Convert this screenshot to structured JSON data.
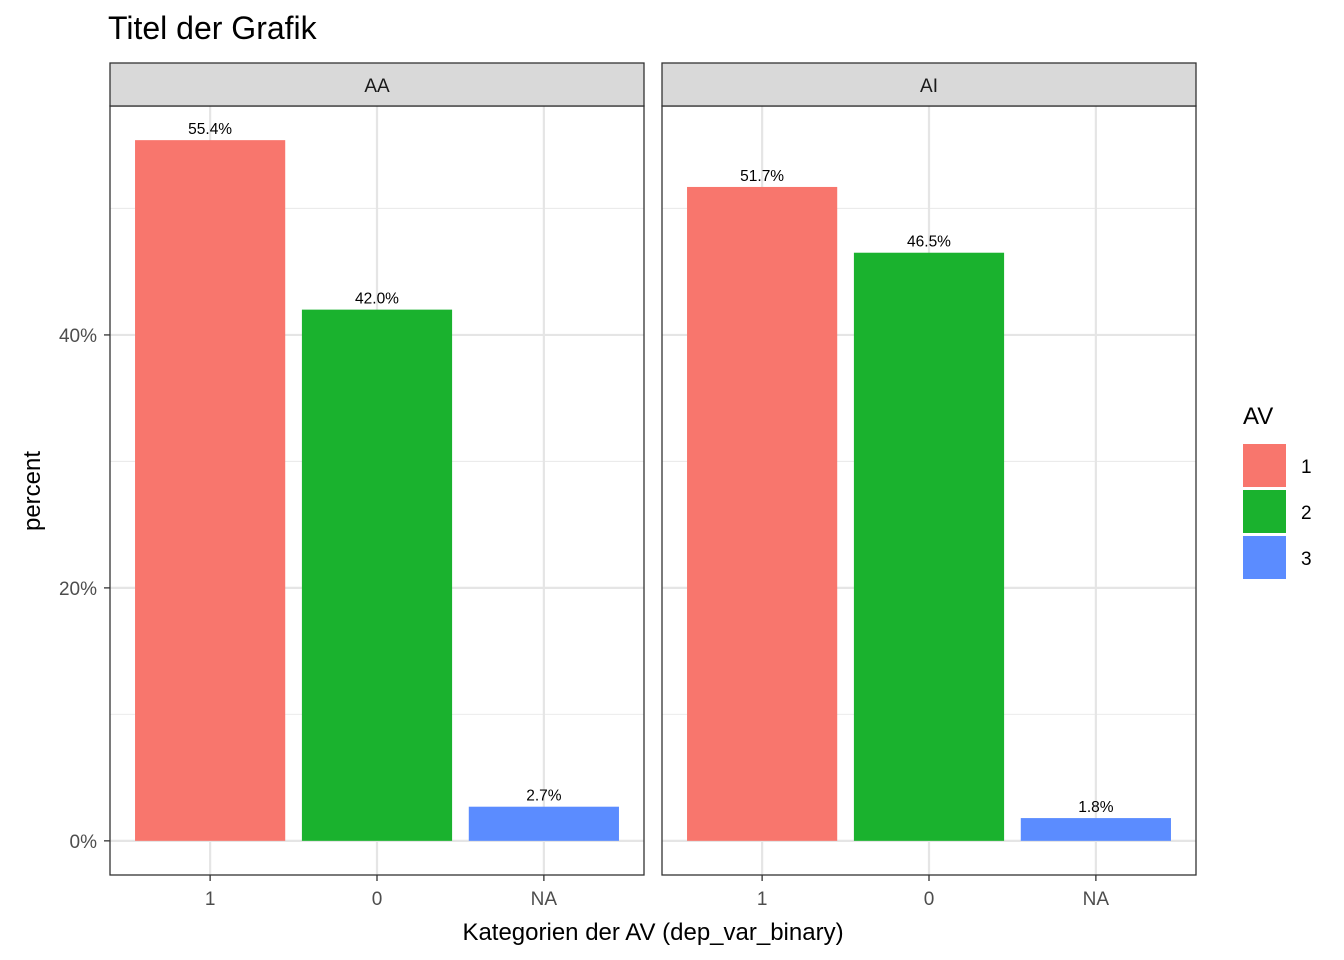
{
  "chart_data": {
    "type": "bar",
    "title": "Titel der Grafik",
    "xlabel": "Kategorien der AV (dep_var_binary)",
    "ylabel": "percent",
    "ylim": [
      -2.7,
      58.1
    ],
    "y_ticks": [
      0,
      20,
      40
    ],
    "y_tick_labels": [
      "0%",
      "20%",
      "40%"
    ],
    "grid": true,
    "legend": {
      "title": "AV",
      "placement": "right",
      "entries": [
        {
          "label": "1",
          "color": "#F8766D"
        },
        {
          "label": "2",
          "color": "#1AB22E"
        },
        {
          "label": "3",
          "color": "#5B8CFF"
        }
      ]
    },
    "categories": [
      "1",
      "0",
      "NA"
    ],
    "facets": [
      {
        "label": "AA",
        "values": [
          55.4,
          42.0,
          2.7
        ],
        "value_labels": [
          "55.4%",
          "42.0%",
          "2.7%"
        ]
      },
      {
        "label": "AI",
        "values": [
          51.7,
          46.5,
          1.8
        ],
        "value_labels": [
          "51.7%",
          "46.5%",
          "1.8%"
        ]
      }
    ]
  }
}
